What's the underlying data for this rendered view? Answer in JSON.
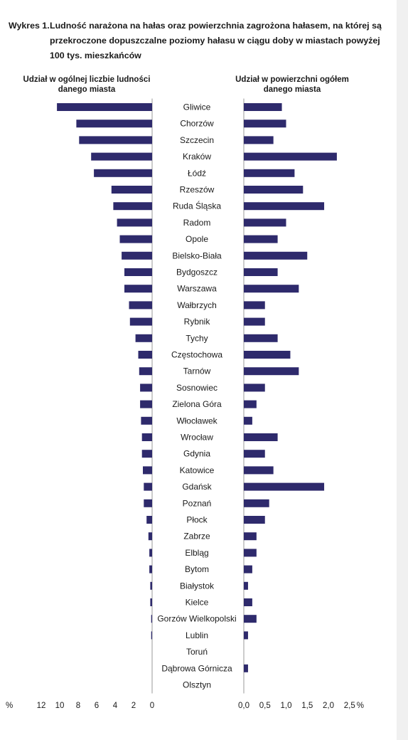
{
  "figure": {
    "title_prefix": "Wykres 1.",
    "title_line1": "Ludność narażona na hałas oraz powierzchnia zagrożona hałasem, na której są",
    "title_line2": "przekroczone dopuszczalne poziomy hałasu w ciągu doby w miastach powyżej",
    "title_line3": "100 tys. mieszkańców"
  },
  "chart_data": [
    {
      "type": "bar",
      "orientation": "horizontal",
      "direction": "right-to-left",
      "title_line1": "Udział w ogólnej liczbie ludności",
      "title_line2": "danego miasta",
      "unit_label": "%",
      "xlim": [
        0,
        12
      ],
      "ticks": [
        "12",
        "10",
        "8",
        "6",
        "4",
        "2",
        "0"
      ],
      "tick_values": [
        12,
        10,
        8,
        6,
        4,
        2,
        0
      ],
      "bar_color": "#2e2a6c",
      "categories": [
        "Gliwice",
        "Chorzów",
        "Szczecin",
        "Kraków",
        "Łódź",
        "Rzeszów",
        "Ruda Śląska",
        "Radom",
        "Opole",
        "Bielsko-Biała",
        "Bydgoszcz",
        "Warszawa",
        "Wałbrzych",
        "Rybnik",
        "Tychy",
        "Częstochowa",
        "Tarnów",
        "Sosnowiec",
        "Zielona Góra",
        "Włocławek",
        "Wrocław",
        "Gdynia",
        "Katowice",
        "Gdańsk",
        "Poznań",
        "Płock",
        "Zabrze",
        "Elbląg",
        "Bytom",
        "Białystok",
        "Kielce",
        "Gorzów Wielkopolski",
        "Lublin",
        "Toruń",
        "Dąbrowa Górnicza",
        "Olsztyn"
      ],
      "values": [
        10.3,
        8.2,
        7.9,
        6.6,
        6.3,
        4.4,
        4.2,
        3.8,
        3.5,
        3.3,
        3.0,
        3.0,
        2.5,
        2.4,
        1.8,
        1.5,
        1.4,
        1.3,
        1.3,
        1.2,
        1.1,
        1.1,
        1.0,
        0.9,
        0.9,
        0.6,
        0.4,
        0.3,
        0.3,
        0.2,
        0.2,
        0.1,
        0.1,
        0.0,
        0.0,
        0.0
      ]
    },
    {
      "type": "bar",
      "orientation": "horizontal",
      "direction": "left-to-right",
      "title_line1": "Udział w powierzchni ogółem",
      "title_line2": "danego miasta",
      "unit_label": "%",
      "xlim": [
        0,
        2.5
      ],
      "ticks": [
        "0,0",
        "0,5",
        "1,0",
        "1,5",
        "2,0",
        "2,5"
      ],
      "tick_values": [
        0,
        0.5,
        1.0,
        1.5,
        2.0,
        2.5
      ],
      "bar_color": "#2e2a6c",
      "categories": [
        "Gliwice",
        "Chorzów",
        "Szczecin",
        "Kraków",
        "Łódź",
        "Rzeszów",
        "Ruda Śląska",
        "Radom",
        "Opole",
        "Bielsko-Biała",
        "Bydgoszcz",
        "Warszawa",
        "Wałbrzych",
        "Rybnik",
        "Tychy",
        "Częstochowa",
        "Tarnów",
        "Sosnowiec",
        "Zielona Góra",
        "Włocławek",
        "Wrocław",
        "Gdynia",
        "Katowice",
        "Gdańsk",
        "Poznań",
        "Płock",
        "Zabrze",
        "Elbląg",
        "Bytom",
        "Białystok",
        "Kielce",
        "Gorzów Wielkopolski",
        "Lublin",
        "Toruń",
        "Dąbrowa Górnicza",
        "Olsztyn"
      ],
      "values": [
        0.9,
        1.0,
        0.7,
        2.2,
        1.2,
        1.4,
        1.9,
        1.0,
        0.8,
        1.5,
        0.8,
        1.3,
        0.5,
        0.5,
        0.8,
        1.1,
        1.3,
        0.5,
        0.3,
        0.2,
        0.8,
        0.5,
        0.7,
        1.9,
        0.6,
        0.5,
        0.3,
        0.3,
        0.2,
        0.1,
        0.2,
        0.3,
        0.1,
        0.0,
        0.1,
        0.0
      ]
    }
  ]
}
